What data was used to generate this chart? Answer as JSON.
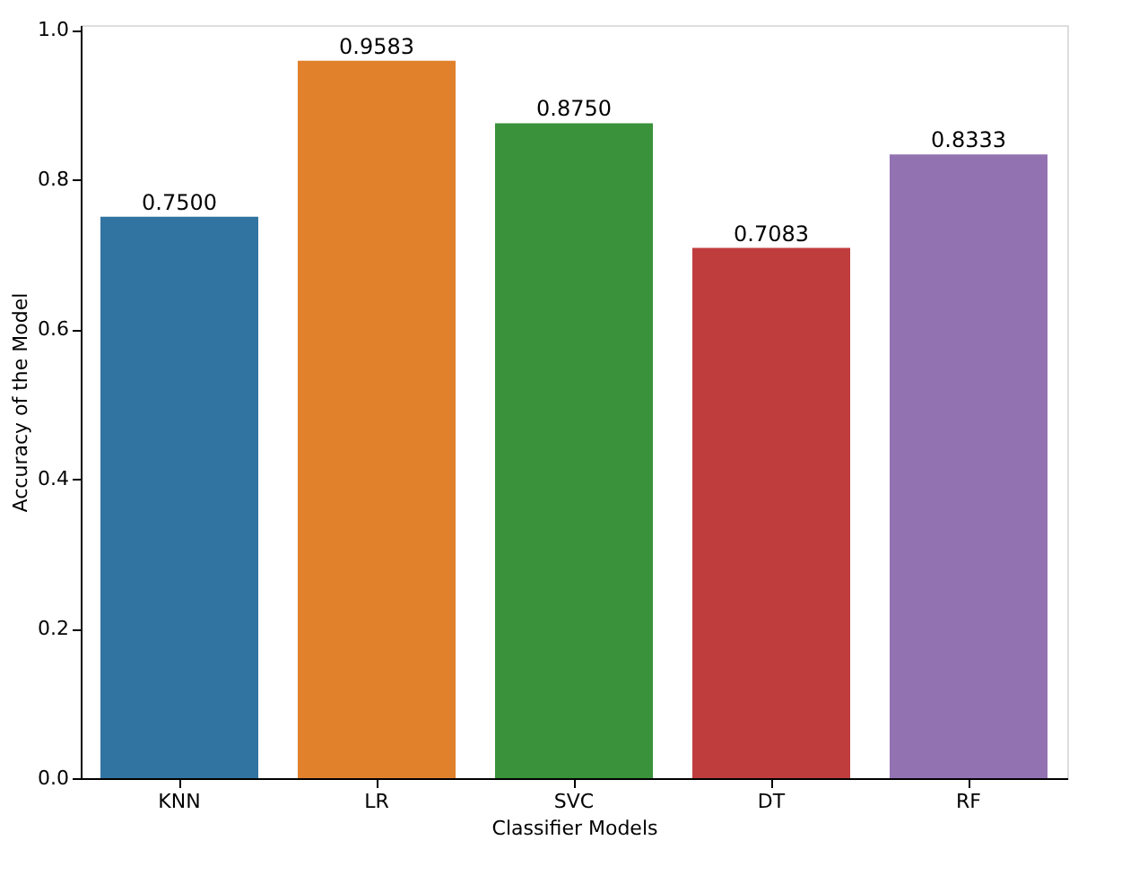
{
  "chart_data": {
    "type": "bar",
    "xlabel": "Classifier Models",
    "ylabel": "Accuracy of the Model",
    "categories": [
      "KNN",
      "LR",
      "SVC",
      "DT",
      "RF"
    ],
    "values": [
      0.75,
      0.9583,
      0.875,
      0.7083,
      0.8333
    ],
    "value_labels": [
      "0.7500",
      "0.9583",
      "0.8750",
      "0.7083",
      "0.8333"
    ],
    "colors": [
      "#3274a1",
      "#e1812c",
      "#3a923a",
      "#c03d3e",
      "#9372b2"
    ],
    "ylim": [
      0,
      1.006
    ],
    "yticks": [
      {
        "value": 0,
        "label": "0.0"
      },
      {
        "value": 0.2,
        "label": "0.2"
      },
      {
        "value": 0.4,
        "label": "0.4"
      },
      {
        "value": 0.6,
        "label": "0.6"
      },
      {
        "value": 0.8,
        "label": "0.8"
      },
      {
        "value": 1.0,
        "label": "1.0"
      }
    ],
    "grid": false,
    "legend": false
  }
}
